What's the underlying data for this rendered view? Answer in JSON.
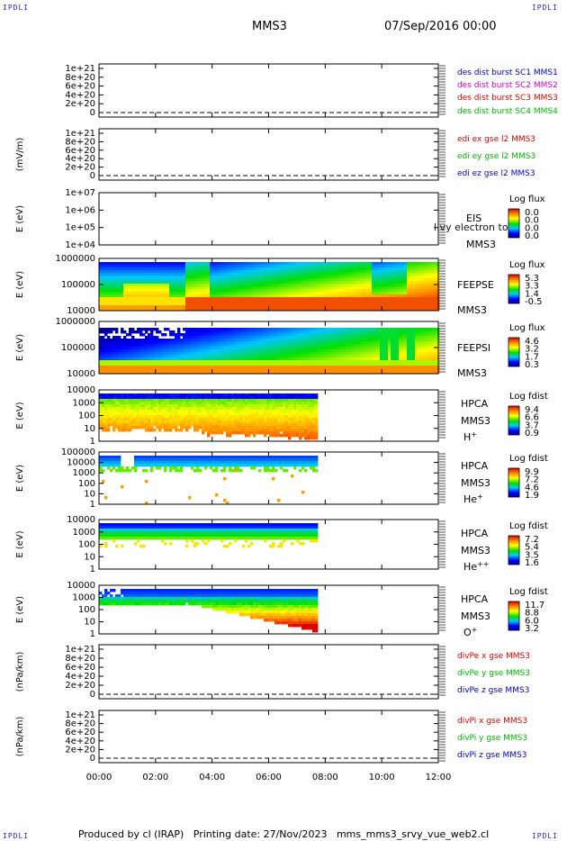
{
  "corner_tag": "IPDLI",
  "header": {
    "spacecraft": "MMS3",
    "datetime": "07/Sep/2016 00:00"
  },
  "footer": "Produced by cl (IRAP)   Printing date: 27/Nov/2023   mms_mms3_srvy_vue_web2.cl",
  "colors": {
    "blue": "#0000cc",
    "magenta": "#d400d4",
    "red": "#dd0000",
    "green": "#00b800"
  },
  "chart_data": {
    "type": "multi-panel time series",
    "x": {
      "ticks": [
        "00:00",
        "02:00",
        "04:00",
        "06:00",
        "08:00",
        "10:00",
        "12:00"
      ],
      "range_hours": [
        0,
        12
      ]
    },
    "panels": [
      {
        "id": "p1",
        "kind": "line",
        "ylabel": "",
        "ytick_labels": [
          "1e+21",
          "8e+20",
          "6e+20",
          "4e+20",
          "2e+20",
          "0"
        ],
        "legend": [
          {
            "label": "des dist burst SC1 MMS1",
            "color": "#0000cc"
          },
          {
            "label": "des dist burst SC2 MMS2",
            "color": "#d400d4"
          },
          {
            "label": "des dist burst SC3 MMS3",
            "color": "#dd0000"
          },
          {
            "label": "des dist burst SC4 MMS4",
            "color": "#00b800"
          }
        ]
      },
      {
        "id": "p2",
        "kind": "line",
        "ylabel": "(mV/m)",
        "ytick_labels": [
          "1e+21",
          "8e+20",
          "6e+20",
          "4e+20",
          "2e+20",
          "0"
        ],
        "legend": [
          {
            "label": "edi ex gse l2 MMS3",
            "color": "#dd0000"
          },
          {
            "label": "edi ey gse l2 MMS3",
            "color": "#00b800"
          },
          {
            "label": "edi ez gse l2 MMS3",
            "color": "#0000cc"
          }
        ]
      },
      {
        "id": "p3",
        "kind": "spectrogram",
        "ylabel": "E (eV)",
        "ytick_labels": [
          "1e+07",
          "1e+06",
          "1e+05",
          "1e+04"
        ],
        "inst": [
          "EIS",
          "MMS3"
        ],
        "overlay_text": "l.vy electron to",
        "cbar_title": "Log flux",
        "cbar_ticks": [
          "0.0",
          "0.0",
          "0.0",
          "0.0"
        ]
      },
      {
        "id": "p4",
        "kind": "spectrogram",
        "ylabel": "E (eV)",
        "ytick_labels": [
          "1000000",
          "100000",
          "10000"
        ],
        "inst": [
          "FEEPSE",
          "MMS3"
        ],
        "cbar_title": "Log flux",
        "cbar_ticks": [
          "5.3",
          "3.3",
          "1.4",
          "-0.5"
        ]
      },
      {
        "id": "p5",
        "kind": "spectrogram",
        "ylabel": "E (eV)",
        "ytick_labels": [
          "1000000",
          "100000",
          "10000"
        ],
        "inst": [
          "FEEPSI",
          "MMS3"
        ],
        "cbar_title": "Log flux",
        "cbar_ticks": [
          "4.6",
          "3.2",
          "1.7",
          "0.3"
        ]
      },
      {
        "id": "p6",
        "kind": "spectrogram",
        "ylabel": "E (eV)",
        "ytick_labels": [
          "10000",
          "1000",
          "100",
          "10",
          "1"
        ],
        "inst": [
          "HPCA",
          "MMS3"
        ],
        "species": "H",
        "charge": "+",
        "cbar_title": "Log fdist",
        "cbar_ticks": [
          "9.4",
          "6.6",
          "3.7",
          "0.9"
        ]
      },
      {
        "id": "p7",
        "kind": "spectrogram",
        "ylabel": "E (eV)",
        "ytick_labels": [
          "100000",
          "10000",
          "1000",
          "100",
          "10",
          "1"
        ],
        "inst": [
          "HPCA",
          "MMS3"
        ],
        "species": "He",
        "charge": "+",
        "cbar_title": "Log fdist",
        "cbar_ticks": [
          "9.9",
          "7.2",
          "4.6",
          "1.9"
        ]
      },
      {
        "id": "p8",
        "kind": "spectrogram",
        "ylabel": "E (eV)",
        "ytick_labels": [
          "10000",
          "1000",
          "100",
          "10",
          "1"
        ],
        "inst": [
          "HPCA",
          "MMS3"
        ],
        "species": "He",
        "charge": "++",
        "cbar_title": "Log fdist",
        "cbar_ticks": [
          "7.2",
          "5.4",
          "3.5",
          "1.6"
        ]
      },
      {
        "id": "p9",
        "kind": "spectrogram",
        "ylabel": "E (eV)",
        "ytick_labels": [
          "10000",
          "1000",
          "100",
          "10",
          "1"
        ],
        "inst": [
          "HPCA",
          "MMS3"
        ],
        "species": "O",
        "charge": "+",
        "cbar_title": "Log fdist",
        "cbar_ticks": [
          "11.7",
          "8.8",
          "6.0",
          "3.2"
        ]
      },
      {
        "id": "p10",
        "kind": "line",
        "ylabel": "(nPa/km)",
        "ytick_labels": [
          "1e+21",
          "8e+20",
          "6e+20",
          "4e+20",
          "2e+20",
          "0"
        ],
        "legend": [
          {
            "label": "divPe x gse MMS3",
            "color": "#dd0000"
          },
          {
            "label": "divPe y gse MMS3",
            "color": "#00b800"
          },
          {
            "label": "divPe z gse MMS3",
            "color": "#0000cc"
          }
        ]
      },
      {
        "id": "p11",
        "kind": "line",
        "ylabel": "(nPa/km)",
        "ytick_labels": [
          "1e+21",
          "8e+20",
          "6e+20",
          "4e+20",
          "2e+20",
          "0"
        ],
        "legend": [
          {
            "label": "divPi x gse MMS3",
            "color": "#dd0000"
          },
          {
            "label": "divPi y gse MMS3",
            "color": "#00b800"
          },
          {
            "label": "divPi z gse MMS3",
            "color": "#0000cc"
          }
        ]
      }
    ]
  }
}
